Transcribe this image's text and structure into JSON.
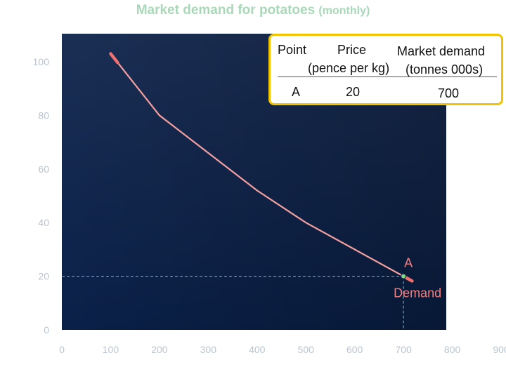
{
  "title": {
    "main": "Market demand for potatoes",
    "sub": "(monthly)"
  },
  "table": {
    "headers": {
      "point": "Point",
      "price_line1": "Price",
      "price_line2": "(pence per kg)",
      "demand_line1": "Market demand",
      "demand_line2": "(tonnes 000s)"
    },
    "row": {
      "point": "A",
      "price": "20",
      "demand": "700"
    }
  },
  "colors": {
    "plot_background_top": "#1b2f55",
    "plot_background_bottom": "#0a2048",
    "curve": "#f4a0a0",
    "accent_border": "#f2c400",
    "point_marker": "#7ddc7d",
    "guide_line": "#8fb3c8"
  },
  "chart_data": {
    "type": "line",
    "title": "Market demand for potatoes (monthly)",
    "xlabel": "",
    "ylabel": "",
    "xlim": [
      0,
      900
    ],
    "ylim": [
      0,
      110
    ],
    "x_ticks": [
      "0",
      "100",
      "200",
      "300",
      "400",
      "500",
      "600",
      "700",
      "800",
      "900"
    ],
    "y_ticks": [
      "0",
      "20",
      "40",
      "60",
      "80",
      "100"
    ],
    "grid": false,
    "series": [
      {
        "name": "Demand",
        "points": [
          {
            "x": 100,
            "y": 103
          },
          {
            "x": 200,
            "y": 80
          },
          {
            "x": 300,
            "y": 66
          },
          {
            "x": 400,
            "y": 52
          },
          {
            "x": 500,
            "y": 40
          },
          {
            "x": 600,
            "y": 30
          },
          {
            "x": 700,
            "y": 20
          }
        ]
      }
    ],
    "annotations": [
      {
        "label": "A",
        "x": 700,
        "y": 20
      }
    ]
  }
}
